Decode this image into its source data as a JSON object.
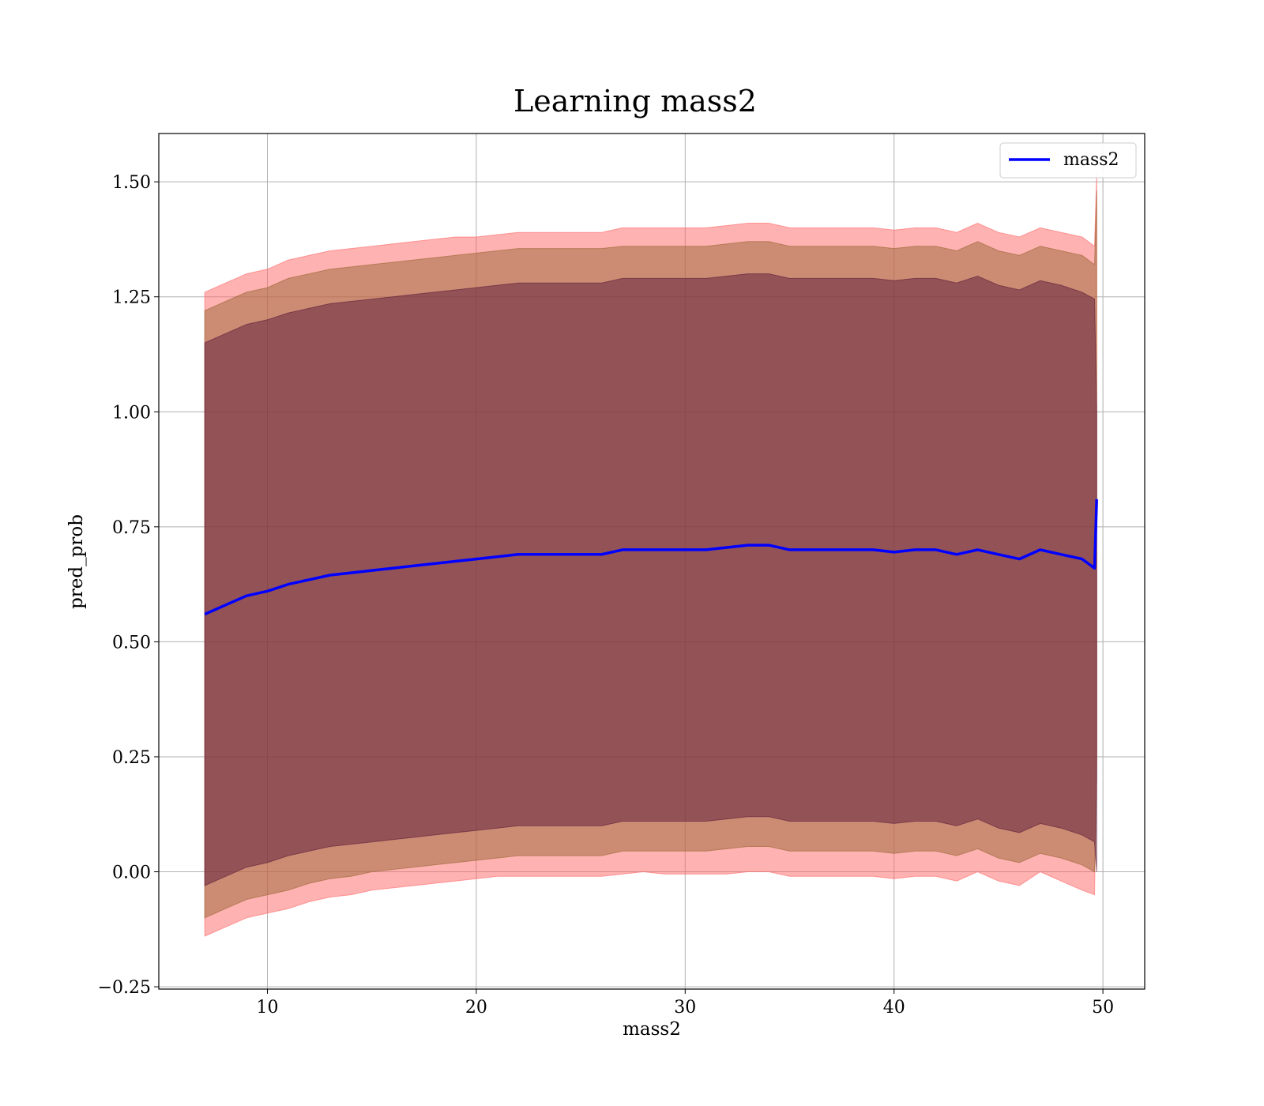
{
  "chart_data": {
    "type": "line",
    "title": "Learning mass2",
    "xlabel": "mass2",
    "ylabel": "pred_prob",
    "xlim": [
      4.8,
      52.0
    ],
    "ylim": [
      -0.255,
      1.605
    ],
    "xticks": [
      10,
      20,
      30,
      40,
      50
    ],
    "yticks": [
      -0.25,
      0.0,
      0.25,
      0.5,
      0.75,
      1.0,
      1.25,
      1.5
    ],
    "xtick_labels": [
      "10",
      "20",
      "30",
      "40",
      "50"
    ],
    "ytick_labels": [
      "−0.25",
      "0.00",
      "0.25",
      "0.50",
      "0.75",
      "1.00",
      "1.25",
      "1.50"
    ],
    "grid": true,
    "legend_position": "top-right",
    "series": [
      {
        "name": "mass2",
        "color": "#0000ff",
        "x": [
          7.0,
          8.0,
          9.0,
          10.0,
          11.0,
          12.0,
          13.0,
          14.0,
          15.0,
          16.0,
          17.0,
          18.0,
          19.0,
          20.0,
          21.0,
          22.0,
          23.0,
          24.0,
          25.0,
          26.0,
          27.0,
          28.0,
          29.0,
          30.0,
          31.0,
          32.0,
          33.0,
          34.0,
          35.0,
          36.0,
          37.0,
          38.0,
          39.0,
          40.0,
          41.0,
          42.0,
          43.0,
          44.0,
          45.0,
          46.0,
          47.0,
          48.0,
          49.0,
          49.6,
          49.7
        ],
        "y": [
          0.56,
          0.58,
          0.6,
          0.61,
          0.625,
          0.635,
          0.645,
          0.65,
          0.655,
          0.66,
          0.665,
          0.67,
          0.675,
          0.68,
          0.685,
          0.69,
          0.69,
          0.69,
          0.69,
          0.69,
          0.7,
          0.7,
          0.7,
          0.7,
          0.7,
          0.705,
          0.71,
          0.71,
          0.7,
          0.7,
          0.7,
          0.7,
          0.7,
          0.695,
          0.7,
          0.7,
          0.69,
          0.7,
          0.69,
          0.68,
          0.7,
          0.69,
          0.68,
          0.66,
          0.81
        ]
      }
    ],
    "bands": [
      {
        "color": "#ff6666",
        "lower": [
          -0.14,
          -0.12,
          -0.1,
          -0.09,
          -0.08,
          -0.065,
          -0.055,
          -0.05,
          -0.04,
          -0.035,
          -0.03,
          -0.025,
          -0.02,
          -0.015,
          -0.01,
          -0.01,
          -0.01,
          -0.01,
          -0.01,
          -0.01,
          -0.005,
          0.0,
          -0.005,
          -0.005,
          -0.005,
          -0.005,
          0.0,
          0.0,
          -0.01,
          -0.01,
          -0.01,
          -0.01,
          -0.01,
          -0.015,
          -0.01,
          -0.01,
          -0.02,
          0.0,
          -0.02,
          -0.03,
          0.0,
          -0.02,
          -0.04,
          -0.05,
          0.25
        ],
        "upper": [
          1.26,
          1.28,
          1.3,
          1.31,
          1.33,
          1.34,
          1.35,
          1.355,
          1.36,
          1.365,
          1.37,
          1.375,
          1.38,
          1.38,
          1.385,
          1.39,
          1.39,
          1.39,
          1.39,
          1.39,
          1.4,
          1.4,
          1.4,
          1.4,
          1.4,
          1.405,
          1.41,
          1.41,
          1.4,
          1.4,
          1.4,
          1.4,
          1.4,
          1.395,
          1.4,
          1.4,
          1.39,
          1.41,
          1.39,
          1.38,
          1.4,
          1.39,
          1.38,
          1.36,
          1.52
        ]
      },
      {
        "color": "#996633",
        "lower": [
          -0.1,
          -0.08,
          -0.06,
          -0.05,
          -0.04,
          -0.025,
          -0.015,
          -0.01,
          0.0,
          0.005,
          0.01,
          0.015,
          0.02,
          0.025,
          0.03,
          0.035,
          0.035,
          0.035,
          0.035,
          0.035,
          0.045,
          0.045,
          0.045,
          0.045,
          0.045,
          0.05,
          0.055,
          0.055,
          0.045,
          0.045,
          0.045,
          0.045,
          0.045,
          0.04,
          0.045,
          0.045,
          0.035,
          0.05,
          0.03,
          0.02,
          0.04,
          0.03,
          0.015,
          0.0,
          0.2
        ],
        "upper": [
          1.22,
          1.24,
          1.26,
          1.27,
          1.29,
          1.3,
          1.31,
          1.315,
          1.32,
          1.325,
          1.33,
          1.335,
          1.34,
          1.345,
          1.35,
          1.355,
          1.355,
          1.355,
          1.355,
          1.355,
          1.36,
          1.36,
          1.36,
          1.36,
          1.36,
          1.365,
          1.37,
          1.37,
          1.36,
          1.36,
          1.36,
          1.36,
          1.36,
          1.355,
          1.36,
          1.36,
          1.35,
          1.37,
          1.35,
          1.34,
          1.36,
          1.35,
          1.34,
          1.32,
          1.48
        ]
      },
      {
        "color": "#5a1a3a",
        "lower": [
          -0.03,
          -0.01,
          0.01,
          0.02,
          0.035,
          0.045,
          0.055,
          0.06,
          0.065,
          0.07,
          0.075,
          0.08,
          0.085,
          0.09,
          0.095,
          0.1,
          0.1,
          0.1,
          0.1,
          0.1,
          0.11,
          0.11,
          0.11,
          0.11,
          0.11,
          0.115,
          0.12,
          0.12,
          0.11,
          0.11,
          0.11,
          0.11,
          0.11,
          0.105,
          0.11,
          0.11,
          0.1,
          0.115,
          0.095,
          0.085,
          0.105,
          0.095,
          0.08,
          0.065,
          0.0
        ],
        "upper": [
          1.15,
          1.17,
          1.19,
          1.2,
          1.215,
          1.225,
          1.235,
          1.24,
          1.245,
          1.25,
          1.255,
          1.26,
          1.265,
          1.27,
          1.275,
          1.28,
          1.28,
          1.28,
          1.28,
          1.28,
          1.29,
          1.29,
          1.29,
          1.29,
          1.29,
          1.295,
          1.3,
          1.3,
          1.29,
          1.29,
          1.29,
          1.29,
          1.29,
          1.285,
          1.29,
          1.29,
          1.28,
          1.295,
          1.275,
          1.265,
          1.285,
          1.275,
          1.26,
          1.245,
          1.0
        ]
      }
    ]
  }
}
